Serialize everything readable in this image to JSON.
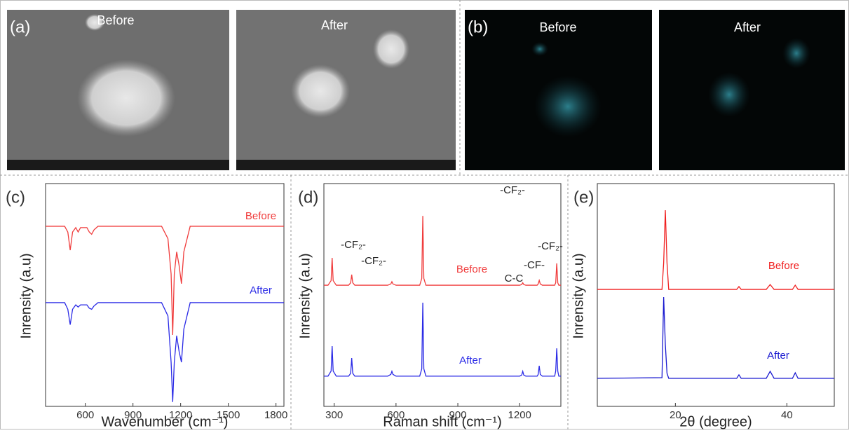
{
  "images": {
    "a": {
      "label": "(a)",
      "captions": [
        "Before",
        "After"
      ]
    },
    "b": {
      "label": "(b)",
      "captions": [
        "Before",
        "After"
      ]
    }
  },
  "chart_data": [
    {
      "type": "line",
      "panel_label": "(c)",
      "xlabel": "Wavenumber (cm⁻¹)",
      "ylabel": "Inrensity (a.u)",
      "x": [
        350,
        470,
        490,
        505,
        520,
        540,
        555,
        570,
        610,
        625,
        640,
        655,
        680,
        1080,
        1120,
        1140,
        1150,
        1160,
        1175,
        1190,
        1205,
        1220,
        1260,
        1850
      ],
      "xlim": [
        350,
        1850
      ],
      "xticks": [
        600,
        900,
        1200,
        1500,
        1800
      ],
      "ylim": [
        0,
        10
      ],
      "series": [
        {
          "name": "Before",
          "color": "#f03c3c",
          "values": [
            8.16,
            8.16,
            7.9,
            7.08,
            7.9,
            8.1,
            7.9,
            8.1,
            8.1,
            7.9,
            7.8,
            8.0,
            8.16,
            8.16,
            7.6,
            6.0,
            3.24,
            6.0,
            7.0,
            6.4,
            5.56,
            7.0,
            8.16,
            8.16
          ]
        },
        {
          "name": "After",
          "color": "#2a2ae6",
          "values": [
            4.7,
            4.7,
            4.4,
            3.7,
            4.4,
            4.6,
            4.5,
            4.6,
            4.6,
            4.45,
            4.4,
            4.55,
            4.7,
            4.7,
            4.1,
            2.0,
            0.2,
            2.0,
            3.2,
            2.5,
            2.0,
            3.5,
            4.7,
            4.7
          ]
        }
      ]
    },
    {
      "type": "line",
      "panel_label": "(d)",
      "xlabel": "Raman shift (cm⁻¹)",
      "ylabel": "Inrensity (a.u)",
      "annotations": [
        "-CF₂-",
        "-CF₂-",
        "-CF₂-",
        "C-C",
        "-CF-",
        "-CF₂-"
      ],
      "x": [
        250,
        270,
        285,
        290,
        295,
        310,
        370,
        380,
        385,
        390,
        400,
        560,
        575,
        580,
        585,
        600,
        715,
        725,
        730,
        735,
        745,
        1200,
        1210,
        1215,
        1220,
        1230,
        1285,
        1290,
        1295,
        1300,
        1310,
        1370,
        1375,
        1380,
        1385,
        1390,
        1400
      ],
      "xlim": [
        250,
        1400
      ],
      "xticks": [
        300,
        600,
        900,
        1200
      ],
      "ylim": [
        0,
        10
      ],
      "series": [
        {
          "name": "Before",
          "color": "#f03c3c",
          "values": [
            5.49,
            5.49,
            5.7,
            6.73,
            5.7,
            5.49,
            5.49,
            5.6,
            5.97,
            5.6,
            5.49,
            5.49,
            5.55,
            5.65,
            5.55,
            5.49,
            5.49,
            5.8,
            8.63,
            5.8,
            5.49,
            5.49,
            5.52,
            5.6,
            5.52,
            5.49,
            5.49,
            5.55,
            5.71,
            5.55,
            5.49,
            5.49,
            5.6,
            6.48,
            5.6,
            5.49,
            5.49
          ]
        },
        {
          "name": "After",
          "color": "#2a2ae6",
          "values": [
            1.37,
            1.37,
            1.6,
            2.73,
            1.6,
            1.37,
            1.37,
            1.5,
            2.19,
            1.5,
            1.37,
            1.37,
            1.45,
            1.59,
            1.45,
            1.37,
            1.37,
            1.7,
            4.7,
            1.7,
            1.37,
            1.37,
            1.42,
            1.59,
            1.42,
            1.37,
            1.37,
            1.45,
            1.84,
            1.45,
            1.37,
            1.37,
            1.6,
            2.63,
            1.6,
            1.37,
            1.37
          ]
        }
      ]
    },
    {
      "type": "line",
      "panel_label": "(e)",
      "xlabel": "2θ (degree)",
      "ylabel": "Inrensity (a.u)",
      "x": [
        6,
        17.6,
        17.9,
        18.2,
        18.5,
        18.8,
        31,
        31.4,
        31.8,
        36.3,
        37,
        37.7,
        41,
        41.5,
        42,
        48.5
      ],
      "xlim": [
        6,
        48.5
      ],
      "xticks": [
        20,
        40
      ],
      "ylim": [
        0,
        10
      ],
      "series": [
        {
          "name": "Before",
          "color": "#f02020",
          "values": [
            5.3,
            5.3,
            6.5,
            8.89,
            6.5,
            5.3,
            5.3,
            5.43,
            5.3,
            5.3,
            5.52,
            5.3,
            5.3,
            5.49,
            5.3,
            5.3
          ]
        },
        {
          "name": "After",
          "color": "#1a1ad0",
          "values": [
            1.27,
            1.3,
            4.95,
            2.8,
            1.5,
            1.27,
            1.27,
            1.43,
            1.27,
            1.27,
            1.59,
            1.27,
            1.27,
            1.52,
            1.27,
            1.27
          ]
        }
      ]
    }
  ]
}
